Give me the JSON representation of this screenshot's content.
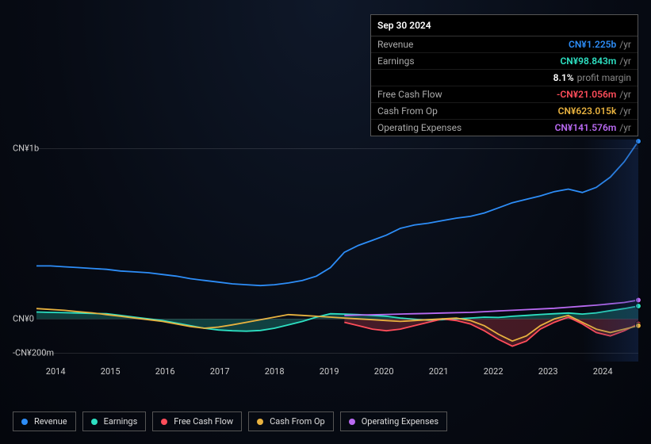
{
  "tooltip": {
    "date": "Sep 30 2024",
    "rows": [
      {
        "label": "Revenue",
        "value": "CN¥1.225b",
        "suffix": "/yr",
        "color": "#2d8df7"
      },
      {
        "label": "Earnings",
        "value": "CN¥98.843m",
        "suffix": "/yr",
        "color": "#2de0c2"
      },
      {
        "label": "",
        "value": "8.1%",
        "suffix": "profit margin",
        "color": "#ffffff"
      },
      {
        "label": "Free Cash Flow",
        "value": "-CN¥21.056m",
        "suffix": "/yr",
        "color": "#ff4d5a"
      },
      {
        "label": "Cash From Op",
        "value": "CN¥623.015k",
        "suffix": "/yr",
        "color": "#e8b23f"
      },
      {
        "label": "Operating Expenses",
        "value": "CN¥141.576m",
        "suffix": "/yr",
        "color": "#b96af2"
      }
    ]
  },
  "chart": {
    "ylim": [
      -250,
      1050
    ],
    "yticks": [
      {
        "v": 1000,
        "label": "CN¥1b"
      },
      {
        "v": 0,
        "label": "CN¥0"
      },
      {
        "v": -200,
        "label": "-CN¥200m"
      }
    ],
    "xticks": [
      "2014",
      "2015",
      "2016",
      "2017",
      "2018",
      "2019",
      "2020",
      "2021",
      "2022",
      "2023",
      "2024"
    ],
    "x_count": 44,
    "highlight": true,
    "series": [
      {
        "name": "Revenue",
        "color": "#2d8df7",
        "dot": true,
        "values": [
          310,
          310,
          305,
          300,
          295,
          290,
          280,
          275,
          270,
          260,
          250,
          235,
          225,
          215,
          205,
          200,
          195,
          200,
          210,
          225,
          250,
          300,
          390,
          430,
          460,
          490,
          530,
          550,
          560,
          575,
          590,
          600,
          620,
          650,
          680,
          700,
          720,
          745,
          760,
          740,
          770,
          830,
          920,
          1040
        ]
      },
      {
        "name": "Earnings",
        "color": "#2de0c2",
        "dot": true,
        "area": true,
        "values": [
          40,
          38,
          36,
          34,
          32,
          30,
          20,
          10,
          0,
          -10,
          -25,
          -40,
          -55,
          -65,
          -70,
          -72,
          -68,
          -55,
          -35,
          -15,
          10,
          30,
          28,
          25,
          20,
          15,
          5,
          -2,
          -8,
          -5,
          0,
          5,
          10,
          8,
          15,
          20,
          26,
          30,
          34,
          28,
          35,
          48,
          60,
          75
        ]
      },
      {
        "name": "Free Cash Flow",
        "color": "#ff4d5a",
        "dot": true,
        "area": true,
        "start": 22,
        "values": [
          -20,
          -40,
          -60,
          -70,
          -60,
          -40,
          -20,
          0,
          -10,
          -30,
          -70,
          -120,
          -160,
          -130,
          -60,
          -20,
          10,
          -30,
          -80,
          -100,
          -70,
          -30
        ]
      },
      {
        "name": "Cash From Op",
        "color": "#e8b23f",
        "dot": true,
        "values": [
          60,
          55,
          50,
          42,
          35,
          25,
          15,
          5,
          -5,
          -15,
          -30,
          -45,
          -55,
          -48,
          -35,
          -20,
          -5,
          10,
          25,
          20,
          15,
          10,
          5,
          0,
          -5,
          -10,
          -15,
          -10,
          -5,
          0,
          5,
          -10,
          -40,
          -90,
          -130,
          -100,
          -40,
          0,
          20,
          -20,
          -60,
          -80,
          -60,
          -40
        ]
      },
      {
        "name": "Operating Expenses",
        "color": "#b96af2",
        "dot": true,
        "start": 22,
        "values": [
          20,
          22,
          24,
          26,
          28,
          30,
          32,
          34,
          36,
          38,
          42,
          46,
          50,
          54,
          58,
          62,
          68,
          74,
          80,
          88,
          96,
          110
        ]
      }
    ],
    "legend": [
      {
        "label": "Revenue",
        "color": "#2d8df7"
      },
      {
        "label": "Earnings",
        "color": "#2de0c2"
      },
      {
        "label": "Free Cash Flow",
        "color": "#ff4d5a"
      },
      {
        "label": "Cash From Op",
        "color": "#e8b23f"
      },
      {
        "label": "Operating Expenses",
        "color": "#b96af2"
      }
    ],
    "background": "#070b14",
    "grid_color": "rgba(255,255,255,0.12)",
    "label_fontsize": 11
  }
}
